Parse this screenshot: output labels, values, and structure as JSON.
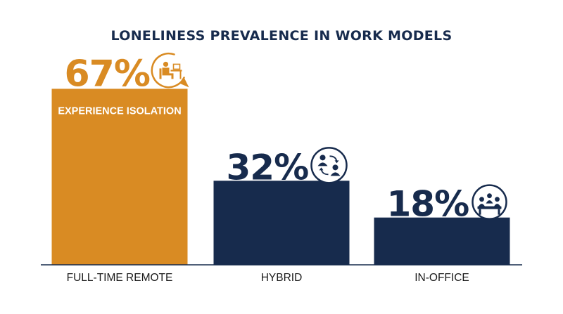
{
  "chart_data": {
    "type": "bar",
    "title": "LONELINESS PREVALENCE IN WORK MODELS",
    "xlabel": "",
    "ylabel": "",
    "ylim": [
      0,
      100
    ],
    "grid": false,
    "legend": "none",
    "categories": [
      "FULL-TIME REMOTE",
      "HYBRID",
      "IN-OFFICE"
    ],
    "values": [
      67,
      32,
      18
    ],
    "value_labels": [
      "67%",
      "32%",
      "18%"
    ],
    "annotations": [
      "EXPERIENCE ISOLATION",
      "",
      ""
    ],
    "icons": [
      "remote-worker-desk-icon",
      "hybrid-exchange-icon",
      "office-meeting-icon"
    ],
    "colors": {
      "remote": "#D98B23",
      "hybrid": "#172B4D",
      "office": "#172B4D",
      "title": "#172B4D",
      "axis": "#172B4D",
      "label": "#1a1a1a"
    }
  }
}
